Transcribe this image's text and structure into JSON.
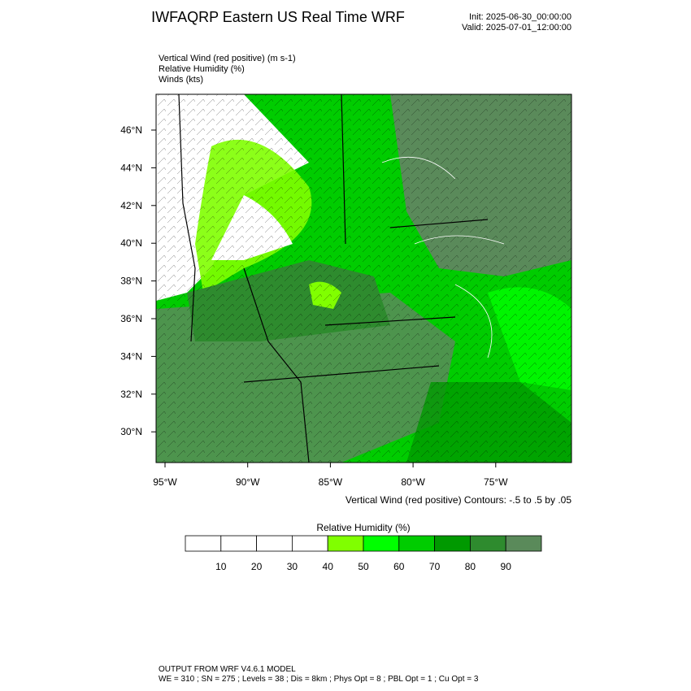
{
  "header": {
    "title": "IWFAQRP Eastern US Real Time WRF",
    "init": "Init: 2025-06-30_00:00:00",
    "valid": "Valid: 2025-07-01_12:00:00"
  },
  "fields": [
    "Vertical Wind (red positive)   (m s-1)",
    "Relative Humidity   (%)",
    "Winds   (kts)"
  ],
  "map": {
    "lat_labels": [
      "46°N",
      "44°N",
      "42°N",
      "40°N",
      "38°N",
      "36°N",
      "34°N",
      "32°N",
      "30°N"
    ],
    "lon_labels": [
      "95°W",
      "90°W",
      "85°W",
      "80°W",
      "75°W"
    ],
    "contour_note": "Vertical Wind (red positive) Contours: -.5 to .5 by .05"
  },
  "colorbar": {
    "title": "Relative Humidity  (%)",
    "colors": [
      "#ffffff",
      "#ffffff",
      "#ffffff",
      "#ffffff",
      "#80ff00",
      "#00ff00",
      "#00cc00",
      "#009900",
      "#2e8b2e",
      "#5a8a5a"
    ],
    "labels": [
      "10",
      "20",
      "30",
      "40",
      "50",
      "60",
      "70",
      "80",
      "90"
    ]
  },
  "footer": {
    "line1": "OUTPUT FROM WRF V4.6.1 MODEL",
    "line2": "WE = 310 ; SN = 275 ; Levels = 38 ; Dis = 8km ; Phys Opt = 8 ; PBL Opt = 1 ; Cu Opt = 3"
  }
}
